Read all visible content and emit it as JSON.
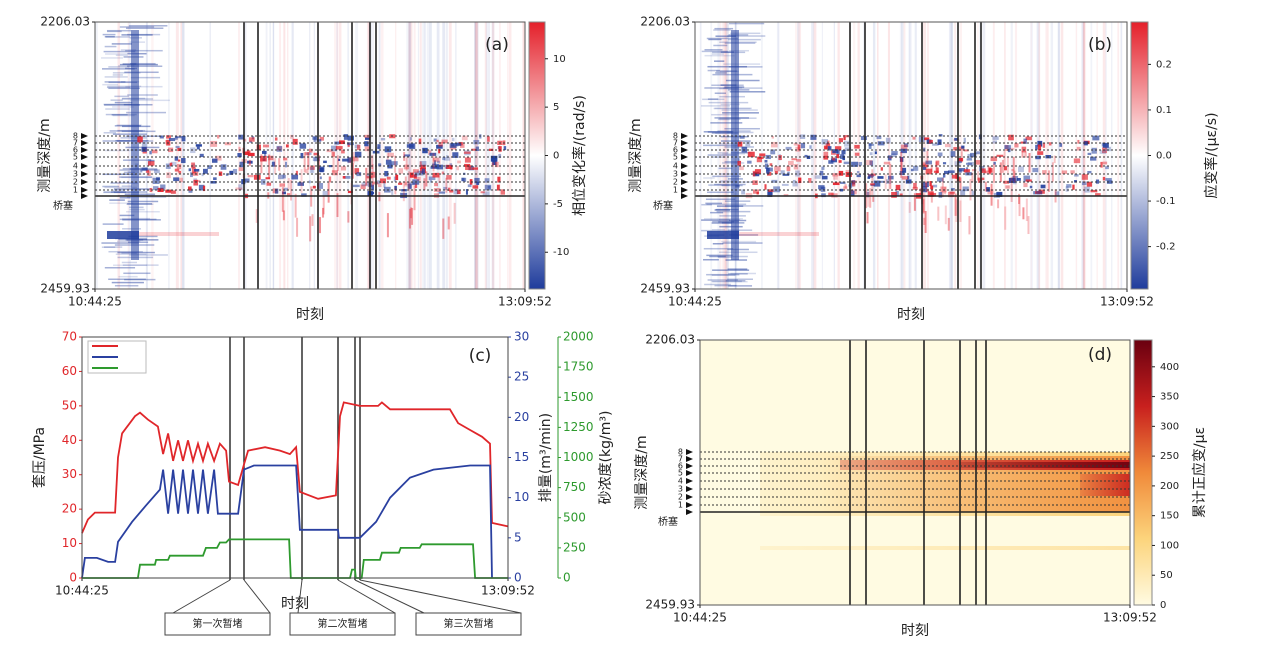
{
  "chart_data": [
    {
      "type": "heatmap",
      "label": "(a)",
      "xlabel": "时刻",
      "ylabel": "测量深度/m",
      "colorbar_label": "相位变化率/(rad/s)",
      "xlim": [
        0,
        145.45
      ],
      "xticks": [
        {
          "value": 0,
          "label": "10:44:25"
        },
        {
          "value": 145.45,
          "label": "13:09:52"
        }
      ],
      "ylim": [
        2459.93,
        2206.03
      ],
      "yticks": [
        2206.03,
        2459.93
      ],
      "clim": [
        -13.8,
        13.8
      ],
      "cticks": [
        -10,
        -5,
        0,
        5,
        10
      ],
      "colormap": [
        "#1f3c9c",
        "#ffffff",
        "#e4202a"
      ],
      "depth_marks": [
        "1",
        "2",
        "3",
        "4",
        "5",
        "6",
        "7",
        "8"
      ],
      "plug_label": "桥塞"
    },
    {
      "type": "heatmap",
      "label": "(b)",
      "xlabel": "时刻",
      "ylabel": "测量深度/m",
      "colorbar_label": "应变率/(με/s)",
      "xlim": [
        0,
        145.45
      ],
      "xticks": [
        {
          "value": 0,
          "label": "10:44:25"
        },
        {
          "value": 145.45,
          "label": "13:09:52"
        }
      ],
      "ylim": [
        2459.93,
        2206.03
      ],
      "yticks": [
        2206.03,
        2459.93
      ],
      "clim": [
        -0.293,
        0.293
      ],
      "cticks": [
        -0.2,
        -0.1,
        {
          "value": 0,
          "label": "0.0"
        },
        0.1,
        0.2
      ],
      "colormap": [
        "#1f3c9c",
        "#ffffff",
        "#e4202a"
      ],
      "depth_marks": [
        "1",
        "2",
        "3",
        "4",
        "5",
        "6",
        "7",
        "8"
      ],
      "plug_label": "桥塞"
    },
    {
      "type": "line",
      "label": "(c)",
      "xlabel": "时刻",
      "xlim": [
        0,
        145.45
      ],
      "xticks": [
        {
          "value": 0,
          "label": "10:44:25"
        },
        {
          "value": 145.45,
          "label": "13:09:52"
        }
      ],
      "ylabel": "套压/MPa",
      "ylim": [
        0,
        70
      ],
      "yticks": [
        0,
        10,
        20,
        30,
        40,
        50,
        60,
        70
      ],
      "y2label": "排量(m³/min)",
      "y2lim": [
        0,
        30
      ],
      "y2ticks": [
        0,
        5,
        10,
        15,
        20,
        25,
        30
      ],
      "y3label": "砂浓度(kg/m³)",
      "y3lim": [
        0,
        2000
      ],
      "y3ticks": [
        0,
        250,
        500,
        750,
        1000,
        1250,
        1500,
        1750,
        2000
      ],
      "legend": "upper left",
      "series": [
        {
          "color": "#e0262a",
          "x": [
            0,
            2.0,
            4.4,
            11.3,
            12.3,
            13.7,
            18.1,
            19.8,
            22.5,
            25.9,
            27.7,
            29.4,
            31.1,
            32.8,
            34.5,
            36.2,
            37.9,
            39.6,
            41.3,
            43.0,
            45.1,
            47.1,
            49.2,
            50.2,
            53.3,
            55.3,
            56.7,
            62.5,
            67.6,
            71.0,
            73.1,
            74.4,
            80.6,
            86.7,
            88.1,
            89.4,
            94.9,
            101.1,
            102.4,
            105.2,
            118.8,
            125.6,
            128.4,
            132.5,
            136.6,
            139.3,
            140.0,
            145.4
          ],
          "values": [
            13,
            17,
            19,
            19,
            35,
            42,
            47,
            48,
            46,
            44,
            36,
            42,
            34,
            40,
            34,
            40,
            34,
            39,
            34,
            39,
            34,
            39,
            37,
            28,
            27,
            33,
            37,
            38,
            37,
            36,
            38,
            25,
            23,
            24,
            47,
            51,
            50,
            50,
            51,
            49,
            49,
            49,
            45,
            43,
            41,
            39,
            16,
            15
          ]
        },
        {
          "color": "#2a40a0",
          "axis": "y2",
          "x": [
            0,
            1.0,
            5.1,
            8.9,
            11.3,
            12.3,
            17.1,
            21.8,
            26.6,
            27.7,
            29.4,
            31.1,
            32.8,
            34.5,
            36.2,
            37.9,
            39.6,
            41.3,
            43.0,
            45.1,
            46.4,
            49.2,
            53.3,
            55.3,
            58.7,
            73.1,
            74.4,
            87.4,
            87.7,
            94.9,
            100.4,
            105.2,
            112.0,
            120.0,
            132.5,
            139.3,
            140.0
          ],
          "values": [
            0,
            2.5,
            2.5,
            2,
            2,
            4.5,
            7,
            9,
            11,
            13.5,
            8,
            13.5,
            8,
            13.5,
            8,
            13.5,
            8,
            13.5,
            8,
            13.5,
            8,
            8,
            8,
            13.5,
            14,
            14,
            6,
            6,
            5,
            5,
            7,
            10,
            12.5,
            13.5,
            14,
            14,
            0
          ]
        },
        {
          "color": "#2e9a2e",
          "axis": "y3",
          "x": [
            0,
            19.1,
            19.8,
            24.9,
            25.3,
            29.4,
            30.0,
            41.3,
            42.3,
            46.1,
            47.1,
            49.2,
            50.2,
            70.7,
            71.3,
            91.5,
            92.2,
            93.2,
            93.5,
            95.5,
            96.2,
            101.7,
            102.4,
            108.2,
            108.8,
            115.3,
            116.0,
            133.5,
            134.2,
            145.4
          ],
          "values": [
            0,
            0,
            110,
            110,
            150,
            150,
            185,
            185,
            250,
            250,
            295,
            295,
            320,
            320,
            0,
            0,
            70,
            70,
            0,
            0,
            150,
            150,
            210,
            210,
            250,
            250,
            280,
            280,
            0,
            0
          ]
        }
      ],
      "annotations": [
        "第一次暂堵",
        "第二次暂堵",
        "第三次暂堵"
      ]
    },
    {
      "type": "heatmap",
      "label": "(d)",
      "xlabel": "时刻",
      "ylabel": "测量深度/m",
      "colorbar_label": "累计正应变/με",
      "xlim": [
        0,
        145.45
      ],
      "xticks": [
        {
          "value": 0,
          "label": "10:44:25"
        },
        {
          "value": 145.45,
          "label": "13:09:52"
        }
      ],
      "ylim": [
        2459.93,
        2206.03
      ],
      "yticks": [
        2206.03,
        2459.93
      ],
      "clim": [
        0,
        445
      ],
      "cticks": [
        0,
        50,
        100,
        150,
        200,
        250,
        300,
        350,
        400
      ],
      "colormap": [
        "#fffbe2",
        "#fcd47c",
        "#f08a3a",
        "#c8201e",
        "#6a0010"
      ],
      "depth_marks": [
        "1",
        "2",
        "3",
        "4",
        "5",
        "6",
        "7",
        "8"
      ],
      "plug_label": "桥塞"
    }
  ]
}
